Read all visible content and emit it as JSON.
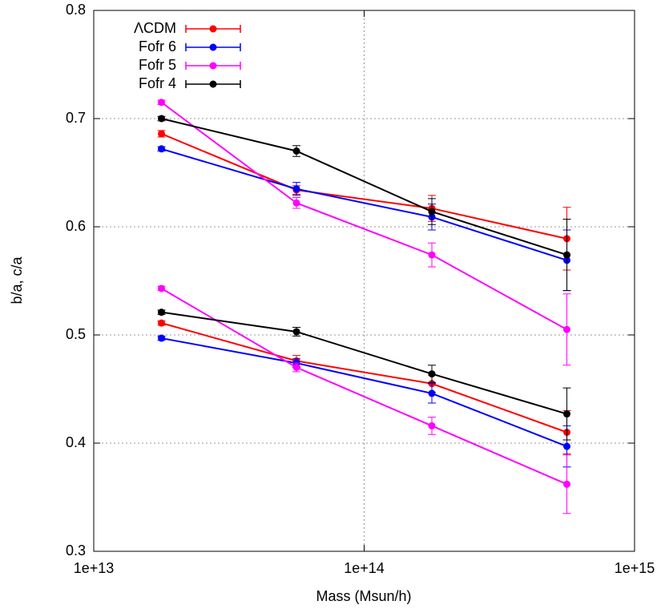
{
  "chart_data": {
    "type": "errorbar_line",
    "xlabel": "Mass (Msun/h)",
    "ylabel": "b/a, c/a",
    "xlog": true,
    "xlim": [
      10000000000000.0,
      1000000000000000.0
    ],
    "xticks": [
      {
        "value": 10000000000000.0,
        "label": "1e+13"
      },
      {
        "value": 100000000000000.0,
        "label": "1e+14"
      },
      {
        "value": 1000000000000000.0,
        "label": "1e+15"
      }
    ],
    "ylim": [
      0.3,
      0.8
    ],
    "yticks": [
      0.3,
      0.4,
      0.5,
      0.6,
      0.7,
      0.8
    ],
    "grid": true,
    "legend": "top-left",
    "x": [
      17800000000000.0,
      56200000000000.0,
      178000000000000.0,
      562000000000000.0
    ],
    "series": [
      {
        "name": "ΛCDM",
        "color": "#ff0000",
        "ba_values": [
          0.686,
          0.634,
          0.617,
          0.589
        ],
        "ba_errors": [
          0.003,
          0.004,
          0.012,
          0.029
        ],
        "ca_values": [
          0.511,
          0.476,
          0.455,
          0.41
        ],
        "ca_errors": [
          0.002,
          0.005,
          0.008,
          0.02
        ]
      },
      {
        "name": "Fofr 6",
        "color": "#0000ff",
        "ba_values": [
          0.672,
          0.635,
          0.609,
          0.569
        ],
        "ba_errors": [
          0.002,
          0.006,
          0.012,
          0.028
        ],
        "ca_values": [
          0.497,
          0.474,
          0.446,
          0.397
        ],
        "ca_errors": [
          0.002,
          0.004,
          0.009,
          0.019
        ]
      },
      {
        "name": "Fofr 5",
        "color": "#ff00ff",
        "ba_values": [
          0.715,
          0.622,
          0.574,
          0.505
        ],
        "ba_errors": [
          0.002,
          0.005,
          0.011,
          0.033
        ],
        "ca_values": [
          0.543,
          0.47,
          0.416,
          0.362
        ],
        "ca_errors": [
          0.002,
          0.004,
          0.008,
          0.027
        ]
      },
      {
        "name": "Fofr 4",
        "color": "#000000",
        "ba_values": [
          0.7,
          0.67,
          0.614,
          0.574
        ],
        "ba_errors": [
          0.002,
          0.005,
          0.012,
          0.033
        ],
        "ca_values": [
          0.521,
          0.503,
          0.464,
          0.427
        ],
        "ca_errors": [
          0.002,
          0.004,
          0.008,
          0.024
        ]
      }
    ]
  }
}
